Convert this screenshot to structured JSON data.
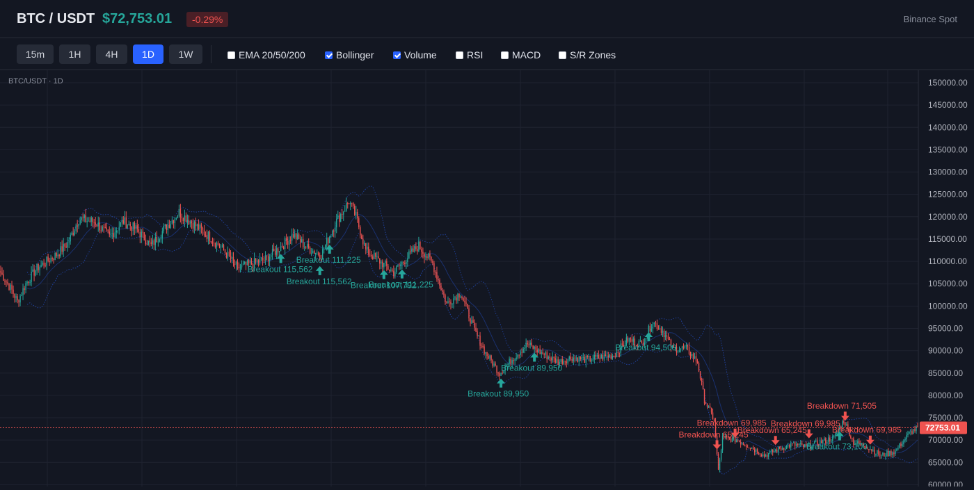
{
  "header": {
    "symbol": "BTC / USDT",
    "price": "$72,753.01",
    "change": "-0.29%",
    "exchange": "Binance Spot"
  },
  "toolbar": {
    "timeframes": [
      {
        "label": "15m",
        "active": false
      },
      {
        "label": "1H",
        "active": false
      },
      {
        "label": "4H",
        "active": false
      },
      {
        "label": "1D",
        "active": true
      },
      {
        "label": "1W",
        "active": false
      }
    ],
    "indicators": [
      {
        "label": "EMA 20/50/200",
        "checked": false
      },
      {
        "label": "Bollinger",
        "checked": true
      },
      {
        "label": "Volume",
        "checked": true
      },
      {
        "label": "RSI",
        "checked": false
      },
      {
        "label": "MACD",
        "checked": false
      },
      {
        "label": "S/R Zones",
        "checked": false
      }
    ]
  },
  "colors": {
    "up": "#26a69a",
    "down": "#ef5350",
    "accent": "#2962ff",
    "background": "#131722"
  },
  "chart_data": {
    "type": "candlestick",
    "title": "BTC/USDT · 1D",
    "y_ticks": [
      "150000.00",
      "145000.00",
      "140000.00",
      "135000.00",
      "130000.00",
      "125000.00",
      "120000.00",
      "115000.00",
      "110000.00",
      "105000.00",
      "100000.00",
      "95000.00",
      "90000.00",
      "85000.00",
      "80000.00",
      "75000.00",
      "70000.00",
      "65000.00",
      "60000.00"
    ],
    "ylim": [
      59600,
      152800
    ],
    "last_price_label": "72753.01",
    "last_price": 72753.01,
    "bollinger": true,
    "grid": true,
    "close_anchors": [
      [
        0,
        107500
      ],
      [
        8,
        103500
      ],
      [
        12,
        101000
      ],
      [
        18,
        105000
      ],
      [
        26,
        108500
      ],
      [
        33,
        110000
      ],
      [
        40,
        111500
      ],
      [
        48,
        114000
      ],
      [
        56,
        119500
      ],
      [
        68,
        118800
      ],
      [
        78,
        115500
      ],
      [
        88,
        119000
      ],
      [
        98,
        117000
      ],
      [
        108,
        113500
      ],
      [
        118,
        117500
      ],
      [
        128,
        121000
      ],
      [
        140,
        118000
      ],
      [
        150,
        115500
      ],
      [
        160,
        112500
      ],
      [
        170,
        108500
      ],
      [
        180,
        109500
      ],
      [
        190,
        110500
      ],
      [
        200,
        113000
      ],
      [
        210,
        116000
      ],
      [
        220,
        113000
      ],
      [
        230,
        111500
      ],
      [
        240,
        118500
      ],
      [
        250,
        123500
      ],
      [
        255,
        120000
      ],
      [
        262,
        112500
      ],
      [
        272,
        110000
      ],
      [
        282,
        107500
      ],
      [
        292,
        111000
      ],
      [
        300,
        113500
      ],
      [
        310,
        109500
      ],
      [
        320,
        100500
      ],
      [
        330,
        103000
      ],
      [
        340,
        94500
      ],
      [
        348,
        89500
      ],
      [
        358,
        85000
      ],
      [
        368,
        88500
      ],
      [
        378,
        91500
      ],
      [
        388,
        89500
      ],
      [
        400,
        87500
      ],
      [
        410,
        88500
      ],
      [
        420,
        88000
      ],
      [
        430,
        88500
      ],
      [
        440,
        89000
      ],
      [
        450,
        92500
      ],
      [
        460,
        91500
      ],
      [
        468,
        96500
      ],
      [
        475,
        94500
      ],
      [
        482,
        90500
      ],
      [
        492,
        90500
      ],
      [
        500,
        87500
      ],
      [
        505,
        79000
      ],
      [
        512,
        74500
      ],
      [
        515,
        63000
      ],
      [
        518,
        70500
      ],
      [
        528,
        70000
      ],
      [
        538,
        68500
      ],
      [
        548,
        66500
      ],
      [
        558,
        68000
      ],
      [
        568,
        69000
      ],
      [
        578,
        68500
      ],
      [
        588,
        69500
      ],
      [
        598,
        70500
      ],
      [
        605,
        74500
      ],
      [
        612,
        69500
      ],
      [
        622,
        68500
      ],
      [
        632,
        66500
      ],
      [
        642,
        67500
      ],
      [
        652,
        71500
      ],
      [
        658,
        72800
      ]
    ],
    "markers": [
      {
        "type": "up",
        "label": "Breakout 115,562",
        "x": 201
      },
      {
        "type": "up",
        "label": "Breakout 115,562",
        "x": 229
      },
      {
        "type": "up",
        "label": "Breakout 111,225",
        "x": 236
      },
      {
        "type": "up",
        "label": "Breakout 111,225",
        "x": 288
      },
      {
        "type": "up",
        "label": "Breakout 107,792",
        "x": 275
      },
      {
        "type": "up",
        "label": "Breakout 89,950",
        "x": 359
      },
      {
        "type": "up",
        "label": "Breakout 89,950",
        "x": 383
      },
      {
        "type": "up",
        "label": "Breakout 94,509",
        "x": 465
      },
      {
        "type": "down",
        "label": "Breakdown 65,245",
        "x": 514
      },
      {
        "type": "down",
        "label": "Breakdown 69,985",
        "x": 527
      },
      {
        "type": "down",
        "label": "Breakdown 65,245",
        "x": 556
      },
      {
        "type": "down",
        "label": "Breakdown 69,985",
        "x": 580
      },
      {
        "type": "down",
        "label": "Breakdown 71,505",
        "x": 606
      },
      {
        "type": "down",
        "label": "Breakdown 69,985",
        "x": 624
      },
      {
        "type": "up",
        "label": "Breakout 73,100",
        "x": 602
      }
    ]
  }
}
